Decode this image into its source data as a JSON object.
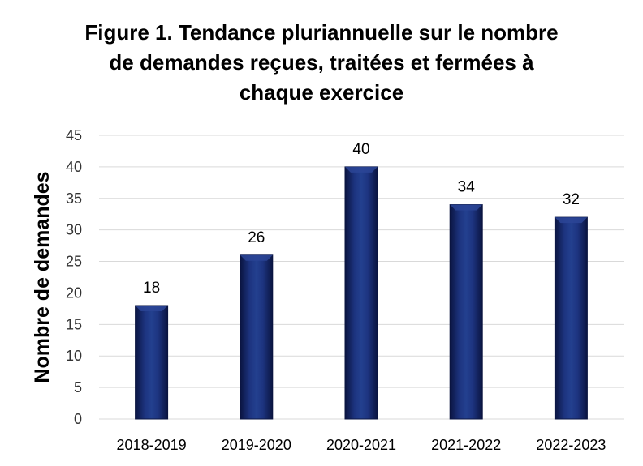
{
  "chart_data": {
    "type": "bar",
    "title_lines": [
      "Figure 1. Tendance pluriannuelle sur le nombre",
      "de demandes reçues, traitées et fermées à",
      "chaque exercice"
    ],
    "categories": [
      "2018-2019",
      "2019-2020",
      "2020-2021",
      "2021-2022",
      "2022-2023"
    ],
    "values": [
      18,
      26,
      40,
      34,
      32
    ],
    "xlabel": "",
    "ylabel": "Nombre de demandes",
    "ylim": [
      0,
      45
    ],
    "yticks": [
      0,
      5,
      10,
      15,
      20,
      25,
      30,
      35,
      40,
      45
    ],
    "grid": true,
    "colors": {
      "bar": "#0f1f5c",
      "bar_light": "#2b4596",
      "bar_dark": "#0a1440",
      "grid": "#d9d9d9"
    }
  }
}
